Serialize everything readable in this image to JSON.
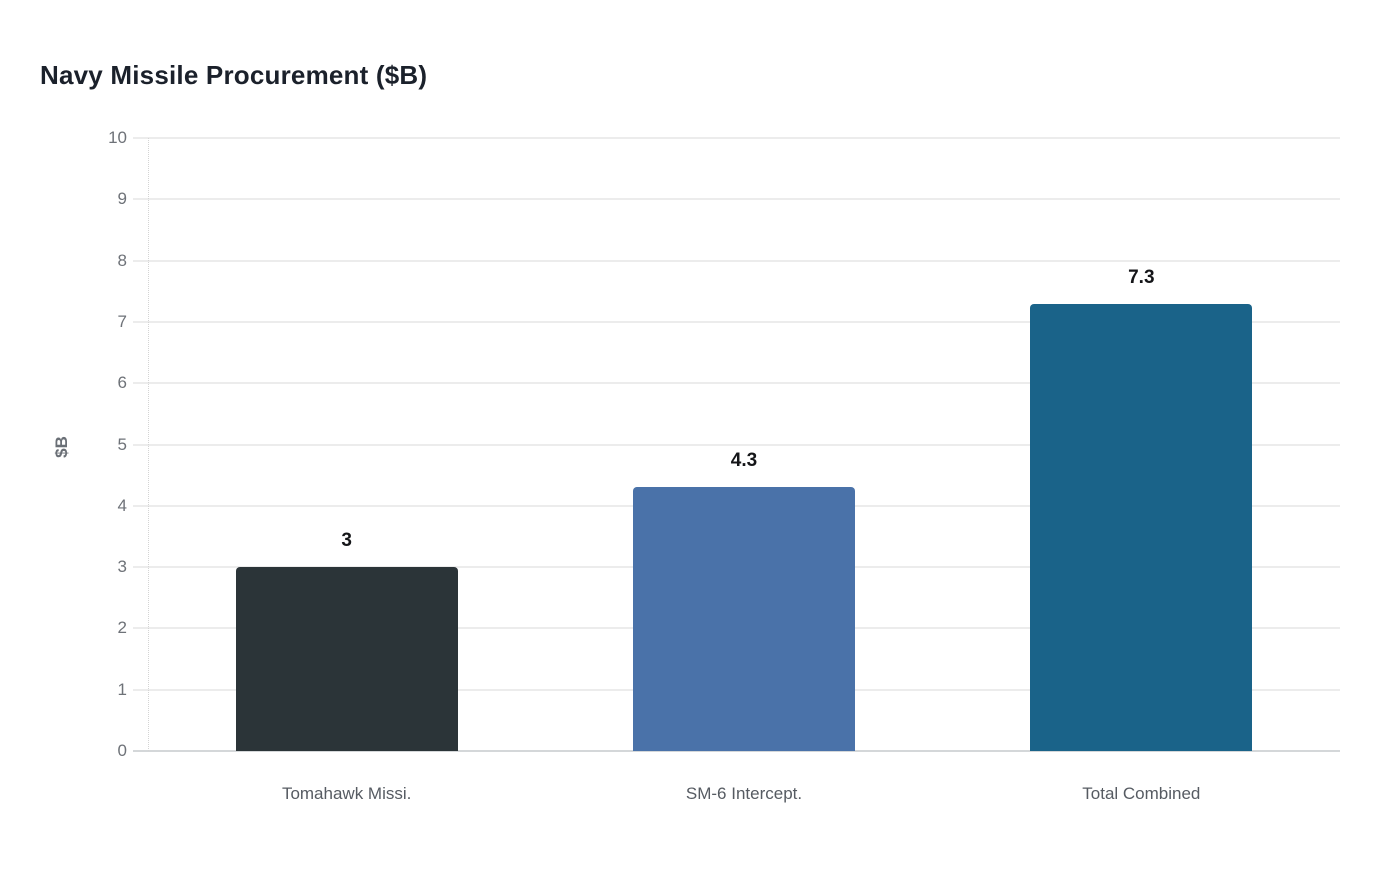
{
  "chart_data": {
    "type": "bar",
    "title": "Navy Missile Procurement ($B)",
    "xlabel": "",
    "ylabel": "$B",
    "categories": [
      "Tomahawk Missi.",
      "SM-6 Intercept.",
      "Total Combined"
    ],
    "values": [
      3,
      4.3,
      7.3
    ],
    "value_labels": [
      "3",
      "4.3",
      "7.3"
    ],
    "bar_colors": [
      "#2b3438",
      "#4a72a9",
      "#1a6389"
    ],
    "ylim": [
      0,
      10
    ],
    "yticks": [
      0,
      1,
      2,
      3,
      4,
      5,
      6,
      7,
      8,
      9,
      10
    ],
    "grid": true,
    "legend": false,
    "background_color": "#ffffff",
    "gridline_color": "#ececec",
    "axis_line_color": "#d4d7d9",
    "tick_label_color": "#6e7278",
    "category_label_color": "#565b62",
    "value_label_color": "#141518",
    "title_color": "#1b212b"
  }
}
